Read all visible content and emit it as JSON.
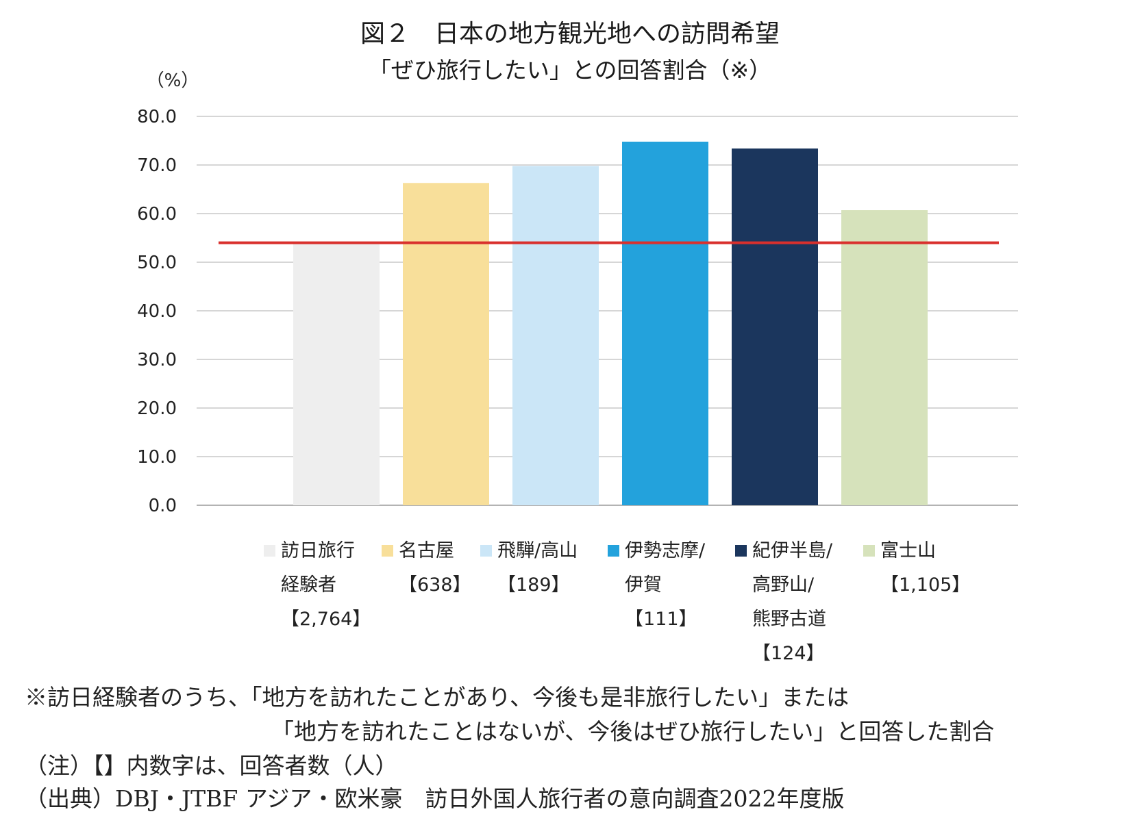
{
  "title": "図２　日本の地方観光地への訪問希望",
  "subtitle": "「ぜひ旅行したい」との回答割合（※）",
  "chart_data": {
    "type": "bar",
    "ylabel": "（%）",
    "ylim": [
      0,
      80
    ],
    "y_ticks": [
      "0.0",
      "10.0",
      "20.0",
      "30.0",
      "40.0",
      "50.0",
      "60.0",
      "70.0",
      "80.0"
    ],
    "grid": true,
    "categories": [
      "訪日旅行経験者【2,764】",
      "名古屋【638】",
      "飛騨/高山【189】",
      "伊勢志摩/伊賀【111】",
      "紀伊半島/高野山/熊野古道【124】",
      "富士山【1,105】"
    ],
    "values": [
      54.0,
      66.3,
      69.8,
      74.8,
      73.4,
      60.7
    ],
    "colors": [
      "#eeeeee",
      "#f8df9a",
      "#cbe6f7",
      "#23a2dc",
      "#1b365d",
      "#d6e2bb"
    ],
    "reference_line": {
      "value": 54.0,
      "color": "#d9302d"
    },
    "legend": [
      {
        "label": "訪日旅行\n経験者\n【2,764】",
        "color": "#eeeeee"
      },
      {
        "label": "名古屋\n【638】",
        "color": "#f8df9a"
      },
      {
        "label": "飛騨/高山\n【189】",
        "color": "#cbe6f7"
      },
      {
        "label": "伊勢志摩/\n伊賀\n【111】",
        "color": "#23a2dc"
      },
      {
        "label": "紀伊半島/\n高野山/\n熊野古道\n【124】",
        "color": "#1b365d"
      },
      {
        "label": "富士山\n【1,105】",
        "color": "#d6e2bb"
      }
    ],
    "legend_position": "bottom"
  },
  "notes": {
    "line1": "※訪日経験者のうち、「地方を訪れたことがあり、今後も是非旅行したい」または",
    "line2": "「地方を訪れたことはないが、今後はぜひ旅行したい」と回答した割合",
    "line3": "（注）【】内数字は、回答者数（人）",
    "line4": "（出典）DBJ・JTBF アジア・欧米豪　訪日外国人旅行者の意向調査2022年度版"
  }
}
